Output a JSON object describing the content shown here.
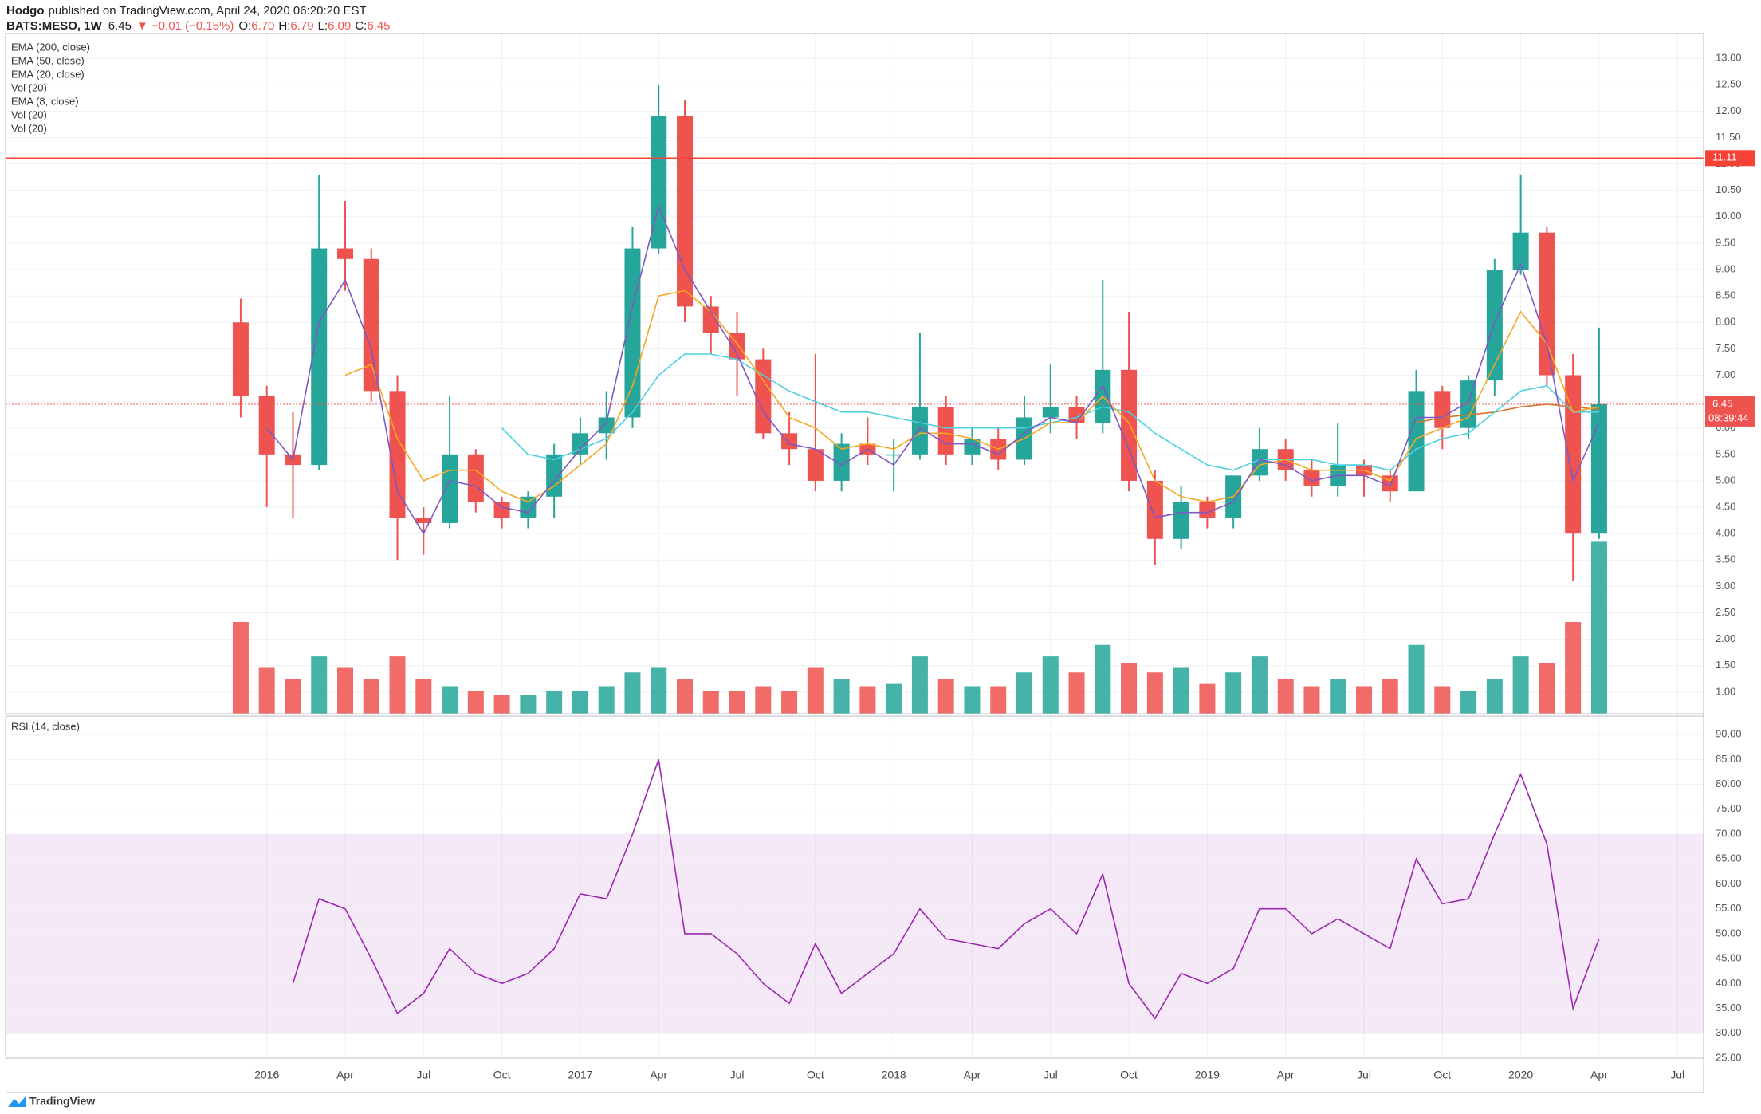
{
  "header": {
    "author": "Hodgo",
    "published": "published on TradingView.com, April 24, 2020 06:20:20 EST",
    "symbol": "BATS:MESO, 1W",
    "last": "6.45",
    "change": "▼ −0.01 (−0.15%)",
    "ohlc": [
      {
        "k": "O:",
        "v": "6.70"
      },
      {
        "k": "H:",
        "v": "6.79"
      },
      {
        "k": "L:",
        "v": "6.09"
      },
      {
        "k": "C:",
        "v": "6.45"
      }
    ]
  },
  "footer": {
    "brand": "TradingView"
  },
  "chart_data": [
    {
      "type": "candlestick",
      "x": [
        "2015-12",
        "2016-01",
        "2016-02",
        "2016-03",
        "2016-04",
        "2016-05",
        "2016-06",
        "2016-07",
        "2016-08",
        "2016-09",
        "2016-10",
        "2016-11",
        "2016-12",
        "2017-01",
        "2017-02",
        "2017-03",
        "2017-04",
        "2017-05",
        "2017-06",
        "2017-07",
        "2017-08",
        "2017-09",
        "2017-10",
        "2017-11",
        "2017-12",
        "2018-01",
        "2018-02",
        "2018-03",
        "2018-04",
        "2018-05",
        "2018-06",
        "2018-07",
        "2018-08",
        "2018-09",
        "2018-10",
        "2018-11",
        "2018-12",
        "2019-01",
        "2019-02",
        "2019-03",
        "2019-04",
        "2019-05",
        "2019-06",
        "2019-07",
        "2019-08",
        "2019-09",
        "2019-10",
        "2019-11",
        "2019-12",
        "2020-01",
        "2020-02",
        "2020-03",
        "2020-04"
      ],
      "open": [
        8.0,
        6.6,
        5.5,
        5.3,
        9.4,
        9.2,
        6.7,
        4.3,
        4.2,
        5.5,
        4.6,
        4.3,
        4.7,
        5.5,
        5.9,
        6.2,
        9.4,
        11.9,
        8.3,
        7.8,
        7.3,
        5.9,
        5.6,
        5.0,
        5.7,
        5.5,
        5.5,
        6.4,
        5.5,
        5.8,
        5.4,
        6.2,
        6.4,
        6.1,
        7.1,
        5.0,
        3.9,
        4.6,
        4.3,
        5.1,
        5.6,
        5.2,
        4.9,
        5.3,
        5.1,
        4.8,
        6.7,
        6.0,
        6.9,
        9.0,
        9.7,
        7.0,
        4.0
      ],
      "high": [
        8.45,
        6.8,
        6.3,
        10.8,
        10.3,
        9.4,
        7.0,
        4.5,
        6.6,
        5.6,
        4.7,
        4.8,
        5.7,
        6.2,
        6.7,
        9.8,
        12.5,
        12.2,
        8.5,
        8.2,
        7.5,
        6.3,
        7.4,
        5.9,
        6.2,
        5.8,
        7.8,
        6.6,
        6.0,
        6.0,
        6.6,
        7.2,
        6.6,
        8.8,
        8.2,
        5.2,
        4.9,
        4.7,
        5.1,
        6.0,
        5.8,
        5.4,
        6.1,
        5.4,
        5.2,
        7.1,
        6.8,
        7.0,
        9.2,
        10.8,
        9.8,
        7.4,
        7.9
      ],
      "low": [
        6.2,
        4.5,
        4.3,
        5.2,
        8.6,
        6.5,
        3.5,
        3.6,
        4.1,
        4.4,
        4.1,
        4.1,
        4.3,
        5.3,
        5.4,
        6.0,
        9.3,
        8.0,
        7.4,
        6.6,
        5.8,
        5.3,
        4.8,
        4.8,
        5.3,
        4.8,
        5.4,
        5.3,
        5.3,
        5.2,
        5.3,
        5.9,
        5.8,
        5.9,
        4.8,
        3.4,
        3.7,
        4.1,
        4.1,
        5.0,
        5.0,
        4.7,
        4.7,
        4.7,
        4.6,
        4.8,
        5.6,
        5.8,
        6.6,
        8.9,
        6.8,
        3.1,
        3.9
      ],
      "close": [
        6.6,
        5.5,
        5.3,
        9.4,
        9.2,
        6.7,
        4.3,
        4.2,
        5.5,
        4.6,
        4.3,
        4.7,
        5.5,
        5.9,
        6.2,
        9.4,
        11.9,
        8.3,
        7.8,
        7.3,
        5.9,
        5.6,
        5.0,
        5.7,
        5.5,
        5.5,
        6.4,
        5.5,
        5.8,
        5.4,
        6.2,
        6.4,
        6.1,
        7.1,
        5.0,
        3.9,
        4.6,
        4.3,
        5.1,
        5.6,
        5.2,
        4.9,
        5.3,
        5.1,
        4.8,
        6.7,
        6.0,
        6.9,
        9.0,
        9.7,
        7.0,
        4.0,
        6.45
      ],
      "up_color": "#26a69a",
      "down_color": "#ef5350",
      "volume": {
        "values": [
          4,
          2,
          1.5,
          2.5,
          2,
          1.5,
          2.5,
          1.5,
          1.2,
          1,
          0.8,
          0.8,
          1,
          1,
          1.2,
          1.8,
          2,
          1.5,
          1,
          1,
          1.2,
          1,
          2,
          1.5,
          1.2,
          1.3,
          2.5,
          1.5,
          1.2,
          1.2,
          1.8,
          2.5,
          1.8,
          3,
          2.2,
          1.8,
          2,
          1.3,
          1.8,
          2.5,
          1.5,
          1.2,
          1.5,
          1.2,
          1.5,
          3,
          1.2,
          1,
          1.5,
          2.5,
          2.2,
          4,
          7.5
        ],
        "ylim": [
          0,
          8
        ]
      },
      "indicators": [
        {
          "label": "EMA (200, close)",
          "color": "#d4762c",
          "values": [
            null,
            null,
            null,
            null,
            null,
            null,
            null,
            null,
            null,
            null,
            null,
            null,
            null,
            null,
            null,
            null,
            null,
            null,
            null,
            null,
            null,
            null,
            null,
            null,
            null,
            null,
            null,
            null,
            null,
            null,
            null,
            null,
            null,
            null,
            null,
            null,
            null,
            null,
            null,
            null,
            null,
            null,
            null,
            null,
            null,
            6.1,
            6.2,
            6.25,
            6.3,
            6.4,
            6.45,
            6.4,
            6.35
          ]
        },
        {
          "label": "EMA (50, close)",
          "color": "#4dd0e1",
          "values": [
            null,
            null,
            null,
            null,
            null,
            null,
            null,
            null,
            null,
            null,
            6.0,
            5.5,
            5.4,
            5.6,
            5.8,
            6.3,
            7.0,
            7.4,
            7.4,
            7.3,
            7.0,
            6.7,
            6.5,
            6.3,
            6.3,
            6.2,
            6.1,
            6.0,
            6.0,
            6.0,
            6.0,
            6.1,
            6.2,
            6.4,
            6.3,
            5.9,
            5.6,
            5.3,
            5.2,
            5.4,
            5.4,
            5.4,
            5.3,
            5.3,
            5.2,
            5.6,
            5.8,
            5.9,
            6.3,
            6.7,
            6.8,
            6.3,
            6.3
          ]
        },
        {
          "label": "EMA (20, close)",
          "color": "#f5a623",
          "values": [
            null,
            null,
            null,
            null,
            7.0,
            7.2,
            5.8,
            5.0,
            5.2,
            5.2,
            4.8,
            4.6,
            4.9,
            5.3,
            5.7,
            6.8,
            8.5,
            8.6,
            8.2,
            7.6,
            6.9,
            6.2,
            6.0,
            5.6,
            5.7,
            5.6,
            5.9,
            5.9,
            5.8,
            5.6,
            5.8,
            6.1,
            6.1,
            6.6,
            6.1,
            5.0,
            4.7,
            4.6,
            4.7,
            5.3,
            5.4,
            5.2,
            5.2,
            5.2,
            5.0,
            5.8,
            6.0,
            6.2,
            7.2,
            8.2,
            7.6,
            6.3,
            6.4
          ]
        },
        {
          "label": "Vol (20)"
        },
        {
          "label": "EMA (8, close)",
          "color": "#7e57c2",
          "values": [
            null,
            6.0,
            5.4,
            8.0,
            8.8,
            7.5,
            4.8,
            4.0,
            5.0,
            4.9,
            4.5,
            4.4,
            5.0,
            5.6,
            6.1,
            8.3,
            10.2,
            9.0,
            8.2,
            7.4,
            6.3,
            5.7,
            5.6,
            5.3,
            5.6,
            5.3,
            6.0,
            5.7,
            5.7,
            5.5,
            5.9,
            6.2,
            6.1,
            6.8,
            5.6,
            4.3,
            4.4,
            4.4,
            4.6,
            5.4,
            5.3,
            5.0,
            5.1,
            5.1,
            4.9,
            6.2,
            6.2,
            6.5,
            8.0,
            9.1,
            7.6,
            5.0,
            6.1
          ]
        },
        {
          "label": "Vol (20)"
        },
        {
          "label": "Vol (20)"
        }
      ],
      "hline": 11.11,
      "last": 6.45,
      "countdown": "08:39:44",
      "ylim": [
        0.59,
        13.47
      ],
      "yticks": [
        {
          "value": 1,
          "label": "1.00"
        },
        {
          "value": 1.5,
          "label": "1.50"
        },
        {
          "value": 2,
          "label": "2.00"
        },
        {
          "value": 2.5,
          "label": "2.50"
        },
        {
          "value": 3,
          "label": "3.00"
        },
        {
          "value": 3.5,
          "label": "3.50"
        },
        {
          "value": 4,
          "label": "4.00"
        },
        {
          "value": 4.5,
          "label": "4.50"
        },
        {
          "value": 5,
          "label": "5.00"
        },
        {
          "value": 5.5,
          "label": "5.50"
        },
        {
          "value": 6,
          "label": "6.00"
        },
        {
          "value": 6.5,
          "label": "6.50"
        },
        {
          "value": 7,
          "label": "7.00"
        },
        {
          "value": 7.5,
          "label": "7.50"
        },
        {
          "value": 8,
          "label": "8.00"
        },
        {
          "value": 8.5,
          "label": "8.50"
        },
        {
          "value": 9,
          "label": "9.00"
        },
        {
          "value": 9.5,
          "label": "9.50"
        },
        {
          "value": 10,
          "label": "10.00"
        },
        {
          "value": 10.5,
          "label": "10.50"
        },
        {
          "value": 11,
          "label": "11.00"
        },
        {
          "value": 11.5,
          "label": "11.50"
        },
        {
          "value": 12,
          "label": "12.00"
        },
        {
          "value": 12.5,
          "label": "12.50"
        },
        {
          "value": 13,
          "label": "13.00"
        }
      ],
      "xlim": [
        "2015-03",
        "2020-08"
      ],
      "xticks": [
        {
          "value": "2016-01",
          "label": "2016"
        },
        {
          "value": "2016-04",
          "label": "Apr"
        },
        {
          "value": "2016-07",
          "label": "Jul"
        },
        {
          "value": "2016-10",
          "label": "Oct"
        },
        {
          "value": "2017-01",
          "label": "2017"
        },
        {
          "value": "2017-04",
          "label": "Apr"
        },
        {
          "value": "2017-07",
          "label": "Jul"
        },
        {
          "value": "2017-10",
          "label": "Oct"
        },
        {
          "value": "2018-01",
          "label": "2018"
        },
        {
          "value": "2018-04",
          "label": "Apr"
        },
        {
          "value": "2018-07",
          "label": "Jul"
        },
        {
          "value": "2018-10",
          "label": "Oct"
        },
        {
          "value": "2019-01",
          "label": "2019"
        },
        {
          "value": "2019-04",
          "label": "Apr"
        },
        {
          "value": "2019-07",
          "label": "Jul"
        },
        {
          "value": "2019-10",
          "label": "Oct"
        },
        {
          "value": "2020-01",
          "label": "2020"
        },
        {
          "value": "2020-04",
          "label": "Apr"
        },
        {
          "value": "2020-07",
          "label": "Jul"
        }
      ],
      "grid": true
    },
    {
      "type": "line",
      "label": "RSI (14, close)",
      "color": "#9c27b0",
      "values": [
        null,
        null,
        40,
        57,
        55,
        45,
        34,
        38,
        47,
        42,
        40,
        42,
        47,
        58,
        57,
        70,
        85,
        50,
        50,
        46,
        40,
        36,
        48,
        38,
        42,
        46,
        55,
        49,
        48,
        47,
        52,
        55,
        50,
        62,
        40,
        33,
        42,
        40,
        43,
        55,
        55,
        50,
        53,
        50,
        47,
        65,
        56,
        57,
        70,
        82,
        68,
        35,
        49
      ],
      "band": [
        30,
        70
      ],
      "ylim": [
        25,
        93.7
      ],
      "yticks": [
        {
          "value": 25,
          "label": "25.00"
        },
        {
          "value": 30,
          "label": "30.00"
        },
        {
          "value": 35,
          "label": "35.00"
        },
        {
          "value": 40,
          "label": "40.00"
        },
        {
          "value": 45,
          "label": "45.00"
        },
        {
          "value": 50,
          "label": "50.00"
        },
        {
          "value": 55,
          "label": "55.00"
        },
        {
          "value": 60,
          "label": "60.00"
        },
        {
          "value": 65,
          "label": "65.00"
        },
        {
          "value": 70,
          "label": "70.00"
        },
        {
          "value": 75,
          "label": "75.00"
        },
        {
          "value": 80,
          "label": "80.00"
        },
        {
          "value": 85,
          "label": "85.00"
        },
        {
          "value": 90,
          "label": "90.00"
        }
      ],
      "grid": true
    }
  ]
}
